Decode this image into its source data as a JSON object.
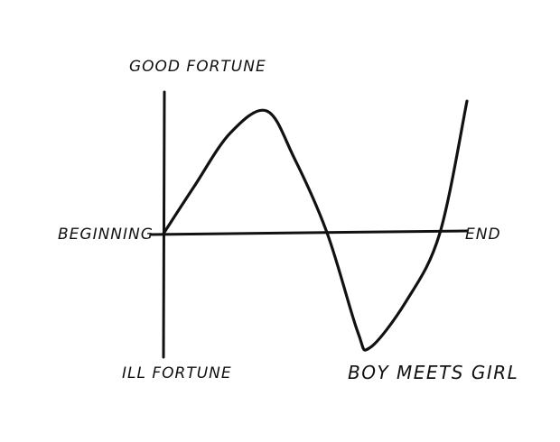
{
  "chart_data": {
    "type": "line",
    "title": "",
    "labels": {
      "y_top": "GOOD FORTUNE",
      "y_bottom": "ILL FORTUNE",
      "x_left": "BEGINNING",
      "x_right": "END",
      "caption": "BOY MEETS GIRL"
    },
    "xlim": [
      0,
      1
    ],
    "ylim": [
      -1,
      1
    ],
    "series": [
      {
        "values": [
          {
            "x": 0.0,
            "y": 0.0
          },
          {
            "x": 0.1,
            "y": 0.38
          },
          {
            "x": 0.22,
            "y": 0.82
          },
          {
            "x": 0.34,
            "y": 1.0
          },
          {
            "x": 0.43,
            "y": 0.62
          },
          {
            "x": 0.54,
            "y": 0.0
          },
          {
            "x": 0.64,
            "y": -0.8
          },
          {
            "x": 0.68,
            "y": -0.93
          },
          {
            "x": 0.8,
            "y": -0.55
          },
          {
            "x": 0.91,
            "y": 0.0
          },
          {
            "x": 1.0,
            "y": 1.08
          }
        ]
      }
    ],
    "grid": false,
    "legend": "none"
  }
}
